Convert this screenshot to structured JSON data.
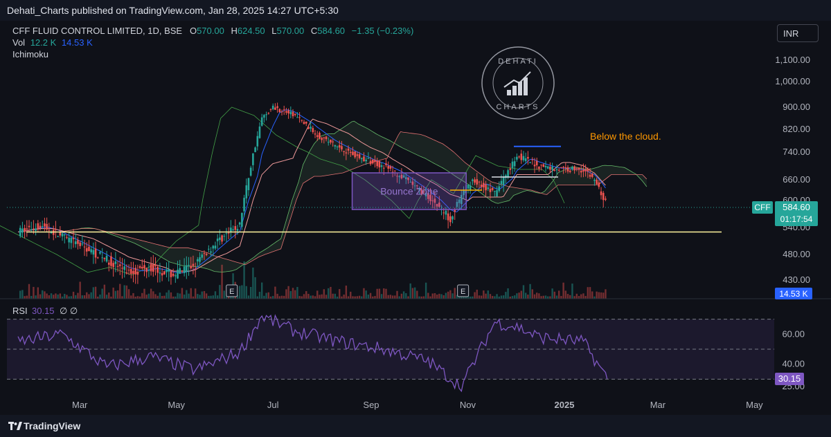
{
  "header": {
    "published": "Dehati_Charts published on TradingView.com, Jan 28, 2025 14:27 UTC+5:30"
  },
  "legend": {
    "symbol": "CFF FLUID CONTROL LIMITED, 1D, BSE",
    "o_label": "O",
    "o": "570.00",
    "h_label": "H",
    "h": "624.50",
    "l_label": "L",
    "l": "570.00",
    "c_label": "C",
    "c": "584.60",
    "change": "−1.35 (−0.23%)",
    "vol_label": "Vol",
    "vol_value": "12.2 K",
    "vol_ma": "14.53 K",
    "indicator": "Ichimoku"
  },
  "currency": "INR",
  "watermark": {
    "line1": "DEHATI",
    "line2": "CHARTS"
  },
  "annotations": {
    "cloud_note": "Below the cloud.",
    "box_label": "Bounce Zone"
  },
  "price_badge": {
    "ticker": "CFF",
    "price": "584.60",
    "countdown": "01:17:54"
  },
  "volume_badge": "14.53 K",
  "rsi": {
    "label": "RSI",
    "value": "30.15",
    "symbols": "∅ ∅"
  },
  "earnings_marker": "E",
  "footer": {
    "brand": "TradingView"
  },
  "colors": {
    "up": "#26a69a",
    "down": "#ef5350",
    "support": "#fff59d",
    "box": "#7e57c2",
    "rsi": "#7e57c2",
    "tenkan": "#2962ff",
    "kijun": "#ef9a9a",
    "lagging": "#43a047",
    "note": "#ff9800"
  },
  "chart_data": [
    {
      "type": "line",
      "name": "price",
      "x": [
        "2024-01-22",
        "2024-02-05",
        "2024-02-19",
        "2024-03-04",
        "2024-03-18",
        "2024-04-01",
        "2024-04-15",
        "2024-04-29",
        "2024-05-13",
        "2024-05-27",
        "2024-06-10",
        "2024-06-17",
        "2024-06-24",
        "2024-07-01",
        "2024-07-15",
        "2024-07-29",
        "2024-08-12",
        "2024-08-26",
        "2024-09-09",
        "2024-09-23",
        "2024-10-07",
        "2024-10-21",
        "2024-11-04",
        "2024-11-18",
        "2024-12-02",
        "2024-12-16",
        "2024-12-30",
        "2025-01-13",
        "2025-01-20",
        "2025-01-28"
      ],
      "values": [
        530,
        545,
        520,
        495,
        470,
        445,
        455,
        440,
        460,
        510,
        545,
        700,
        860,
        900,
        870,
        800,
        755,
        720,
        700,
        660,
        610,
        560,
        660,
        620,
        730,
        700,
        690,
        690,
        660,
        584.6
      ],
      "ylim": [
        390,
        1160
      ],
      "y_ticks": [
        "1,100.00",
        "1,000.00",
        "900.00",
        "820.00",
        "740.00",
        "660.00",
        "600.00",
        "540.00",
        "480.00",
        "430.00"
      ],
      "x_ticks": [
        "Mar",
        "May",
        "Jul",
        "Sep",
        "Nov",
        "2025",
        "Mar",
        "May"
      ],
      "support_level": 530,
      "resistance_level": 760,
      "bounce_zone": {
        "x": [
          "2024-08-20",
          "2024-10-31"
        ],
        "y": [
          580,
          680
        ]
      }
    },
    {
      "type": "line",
      "name": "RSI",
      "x": [
        "2024-01-22",
        "2024-02-19",
        "2024-03-18",
        "2024-04-15",
        "2024-05-13",
        "2024-06-10",
        "2024-06-24",
        "2024-07-15",
        "2024-08-12",
        "2024-09-09",
        "2024-10-07",
        "2024-10-28",
        "2024-11-18",
        "2024-12-02",
        "2024-12-16",
        "2025-01-13",
        "2025-01-28"
      ],
      "values": [
        55,
        60,
        38,
        45,
        36,
        48,
        72,
        62,
        55,
        50,
        42,
        25,
        68,
        65,
        58,
        55,
        30.15
      ],
      "ylim": [
        20,
        80
      ],
      "bands": [
        70,
        50,
        30
      ],
      "y_ticks": [
        "60.00",
        "40.00",
        "25.00"
      ]
    }
  ]
}
